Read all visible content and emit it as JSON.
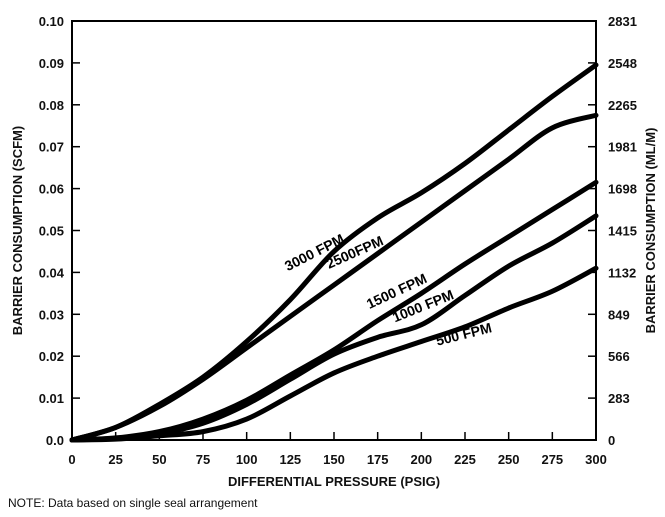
{
  "chart_data": {
    "type": "line",
    "xlabel": "DIFFERENTIAL PRESSURE (PSIG)",
    "ylabel": "BARRIER CONSUMPTION (SCFM)",
    "y2label": "BARRIER CONSUMPTION (ML/M)",
    "xlim": [
      0,
      300
    ],
    "ylim": [
      0,
      0.1
    ],
    "x_ticks": [
      0,
      25,
      50,
      75,
      100,
      125,
      150,
      175,
      200,
      225,
      250,
      275,
      300
    ],
    "x_tick_labels": [
      "0",
      "25",
      "50",
      "75",
      "100",
      "125",
      "150",
      "175",
      "200",
      "225",
      "250",
      "275",
      "300"
    ],
    "y_ticks": [
      0,
      0.01,
      0.02,
      0.03,
      0.04,
      0.05,
      0.06,
      0.07,
      0.08,
      0.09,
      0.1
    ],
    "y_tick_labels": [
      "0.0",
      "0.01",
      "0.02",
      "0.03",
      "0.04",
      "0.05",
      "0.06",
      "0.07",
      "0.08",
      "0.09",
      "0.10"
    ],
    "y2_tick_labels": [
      "0",
      "283",
      "566",
      "849",
      "1132",
      "1415",
      "1698",
      "1981",
      "2265",
      "2548",
      "2831"
    ],
    "grid": false,
    "series": [
      {
        "name": "3000 FPM",
        "x": [
          0,
          25,
          50,
          75,
          100,
          125,
          150,
          175,
          200,
          225,
          250,
          275,
          300
        ],
        "y": [
          0,
          0.003,
          0.0085,
          0.015,
          0.0235,
          0.0335,
          0.045,
          0.053,
          0.059,
          0.066,
          0.074,
          0.082,
          0.0895
        ]
      },
      {
        "name": "2500FPM",
        "x": [
          0,
          25,
          50,
          75,
          100,
          125,
          150,
          175,
          200,
          225,
          250,
          275,
          300
        ],
        "y": [
          0,
          0.003,
          0.008,
          0.0145,
          0.022,
          0.0295,
          0.037,
          0.0445,
          0.052,
          0.0595,
          0.067,
          0.0745,
          0.0775
        ]
      },
      {
        "name": "1500 FPM",
        "x": [
          0,
          25,
          50,
          75,
          100,
          125,
          150,
          175,
          200,
          225,
          250,
          275,
          300
        ],
        "y": [
          0,
          0.0005,
          0.002,
          0.005,
          0.0095,
          0.0155,
          0.0215,
          0.0285,
          0.035,
          0.042,
          0.0485,
          0.055,
          0.0615
        ]
      },
      {
        "name": "1000 FPM",
        "x": [
          0,
          25,
          50,
          75,
          100,
          125,
          150,
          175,
          200,
          225,
          250,
          275,
          300
        ],
        "y": [
          0,
          0.0004,
          0.0015,
          0.004,
          0.0085,
          0.0145,
          0.0205,
          0.0245,
          0.0275,
          0.0345,
          0.0415,
          0.047,
          0.0535
        ]
      },
      {
        "name": "500 FPM",
        "x": [
          0,
          25,
          50,
          75,
          100,
          125,
          150,
          175,
          200,
          225,
          250,
          275,
          300
        ],
        "y": [
          0,
          0.0002,
          0.001,
          0.002,
          0.005,
          0.0105,
          0.016,
          0.02,
          0.0235,
          0.027,
          0.0315,
          0.0355,
          0.041
        ]
      }
    ],
    "note": "NOTE: Data based on single seal arrangement"
  }
}
